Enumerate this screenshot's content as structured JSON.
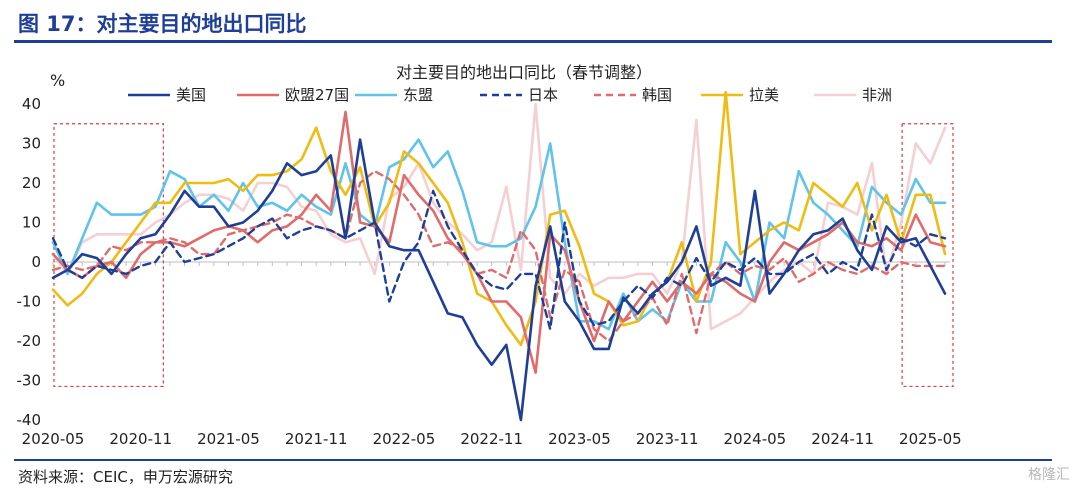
{
  "figure_title": "图 17：对主要目的地出口同比",
  "source": "资料来源：CEIC，申万宏源研究",
  "watermark": "格隆汇",
  "chart_data": {
    "type": "line",
    "title": "对主要目的地出口同比（春节调整）",
    "ylabel": "%",
    "xlabel": "",
    "ylim": [
      -40,
      40
    ],
    "yticks": [
      -40,
      -30,
      -20,
      -10,
      0,
      10,
      20,
      30,
      40
    ],
    "x_ticks": [
      "2020-05",
      "2020-11",
      "2021-05",
      "2021-11",
      "2022-05",
      "2022-11",
      "2023-05",
      "2023-11",
      "2024-05",
      "2024-11",
      "2025-05"
    ],
    "x": [
      "2020-05",
      "2020-06",
      "2020-07",
      "2020-08",
      "2020-09",
      "2020-10",
      "2020-11",
      "2020-12",
      "2021-01",
      "2021-02",
      "2021-03",
      "2021-04",
      "2021-05",
      "2021-06",
      "2021-07",
      "2021-08",
      "2021-09",
      "2021-10",
      "2021-11",
      "2021-12",
      "2022-01",
      "2022-02",
      "2022-03",
      "2022-04",
      "2022-05",
      "2022-06",
      "2022-07",
      "2022-08",
      "2022-09",
      "2022-10",
      "2022-11",
      "2022-12",
      "2023-01",
      "2023-02",
      "2023-03",
      "2023-04",
      "2023-05",
      "2023-06",
      "2023-07",
      "2023-08",
      "2023-09",
      "2023-10",
      "2023-11",
      "2023-12",
      "2024-01",
      "2024-02",
      "2024-03",
      "2024-04",
      "2024-05",
      "2024-06",
      "2024-07",
      "2024-08",
      "2024-09",
      "2024-10",
      "2024-11",
      "2024-12",
      "2025-01",
      "2025-02",
      "2025-03",
      "2025-04",
      "2025-05",
      "2025-06"
    ],
    "legend_position": "top",
    "highlight_regions": [
      [
        "2020-05",
        "2020-12"
      ],
      [
        "2025-03",
        "2025-06"
      ]
    ],
    "series": [
      {
        "name": "美国",
        "color": "#1f3f96",
        "dash": "solid",
        "width": 2.6,
        "values": [
          -4,
          -2,
          2,
          1,
          -3,
          2,
          6,
          7,
          12,
          18,
          14,
          14,
          9,
          10,
          13,
          18,
          25,
          22,
          23,
          27,
          6,
          31,
          10,
          4,
          3,
          3,
          -5,
          -13,
          -14,
          -21,
          -26,
          -21,
          -40,
          -6,
          9,
          -10,
          -15,
          -22,
          -22,
          -9,
          -13,
          -8,
          -5,
          0,
          9,
          -6,
          -4,
          -6,
          18,
          -8,
          -3,
          3,
          7,
          8,
          11,
          3,
          -2,
          9,
          5,
          6,
          -1,
          -8
        ]
      },
      {
        "name": "欧盟27国",
        "color": "#e06b6b",
        "dash": "solid",
        "width": 2.6,
        "values": [
          2,
          -2,
          -4,
          -1,
          0,
          -4,
          2,
          5,
          5,
          4,
          6,
          8,
          9,
          8,
          5,
          8,
          9,
          12,
          17,
          13,
          38,
          10,
          9,
          5,
          22,
          17,
          13,
          6,
          2,
          -3,
          -10,
          -10,
          -14,
          -28,
          7,
          3,
          -10,
          -20,
          -10,
          -15,
          -10,
          -5,
          -10,
          -5,
          -8,
          -3,
          -5,
          -8,
          -10,
          0,
          5,
          3,
          5,
          7,
          10,
          5,
          4,
          6,
          3,
          12,
          5,
          4
        ]
      },
      {
        "name": "东盟",
        "color": "#5fc3ea",
        "dash": "solid",
        "width": 2.6,
        "values": [
          5,
          -3,
          6,
          15,
          12,
          12,
          12,
          14,
          23,
          21,
          14,
          17,
          13,
          20,
          14,
          15,
          13,
          17,
          14,
          12,
          25,
          12,
          9,
          24,
          26,
          31,
          24,
          28,
          18,
          5,
          4,
          4,
          6,
          14,
          30,
          5,
          -15,
          -15,
          -17,
          -8,
          -15,
          -12,
          -15,
          -5,
          -10,
          -10,
          5,
          0,
          -10,
          10,
          6,
          23,
          15,
          12,
          8,
          4,
          19,
          15,
          12,
          21,
          15,
          15
        ]
      },
      {
        "name": "日本",
        "color": "#1f3f96",
        "dash": "dashed",
        "width": 2.4,
        "values": [
          6,
          -2,
          -4,
          -1,
          -2,
          -3,
          -1,
          0,
          5,
          0,
          1,
          2,
          4,
          6,
          9,
          11,
          6,
          8,
          9,
          8,
          6,
          8,
          10,
          -10,
          0,
          5,
          18,
          9,
          3,
          -3,
          -6,
          -7,
          -3,
          -3,
          -17,
          10,
          -10,
          -16,
          -15,
          -10,
          -6,
          -9,
          -4,
          -6,
          1,
          -5,
          0,
          -2,
          1,
          -3,
          -3,
          0,
          2,
          -3,
          0,
          -2,
          12,
          -2,
          6,
          4,
          7,
          6
        ]
      },
      {
        "name": "韩国",
        "color": "#e06b6b",
        "dash": "dashed",
        "width": 2.4,
        "values": [
          -2,
          -1,
          -2,
          -1,
          4,
          3,
          5,
          5,
          6,
          5,
          2,
          2,
          7,
          8,
          9,
          10,
          12,
          11,
          9,
          8,
          6,
          20,
          23,
          21,
          17,
          12,
          4,
          5,
          3,
          -3,
          -2,
          -4,
          8,
          3,
          -14,
          -2,
          -5,
          -17,
          -20,
          -15,
          -13,
          -9,
          -16,
          -3,
          -18,
          -3,
          0,
          -3,
          -1,
          -2,
          1,
          -5,
          -3,
          0,
          -2,
          -3,
          -1,
          -3,
          0,
          -1,
          -1,
          -1
        ]
      },
      {
        "name": "拉美",
        "color": "#f0bb12",
        "dash": "solid",
        "width": 2.6,
        "values": [
          -7,
          -11,
          -8,
          -3,
          0,
          5,
          10,
          15,
          15,
          20,
          20,
          20,
          21,
          18,
          22,
          22,
          23,
          26,
          34,
          23,
          17,
          24,
          9,
          15,
          28,
          25,
          20,
          15,
          5,
          -8,
          -10,
          -16,
          -21,
          -10,
          12,
          13,
          4,
          -8,
          -10,
          -16,
          -15,
          -8,
          -5,
          5,
          -10,
          0,
          43,
          2,
          5,
          8,
          10,
          8,
          20,
          17,
          14,
          20,
          8,
          17,
          5,
          17,
          17,
          2
        ]
      },
      {
        "name": "非洲",
        "color": "#f5d0d2",
        "dash": "solid",
        "width": 2.6,
        "values": [
          2,
          -3,
          5,
          7,
          7,
          7,
          7,
          10,
          12,
          15,
          17,
          17,
          16,
          13,
          20,
          20,
          19,
          14,
          13,
          7,
          5,
          6,
          -3,
          16,
          19,
          25,
          15,
          10,
          7,
          3,
          5,
          19,
          -2,
          40,
          -4,
          -8,
          -3,
          -6,
          -4,
          -4,
          -3,
          -3,
          -8,
          0,
          36,
          -17,
          -15,
          -13,
          -9,
          -5,
          -2,
          0,
          -3,
          15,
          14,
          12,
          25,
          -3,
          10,
          30,
          25,
          34
        ]
      }
    ]
  }
}
